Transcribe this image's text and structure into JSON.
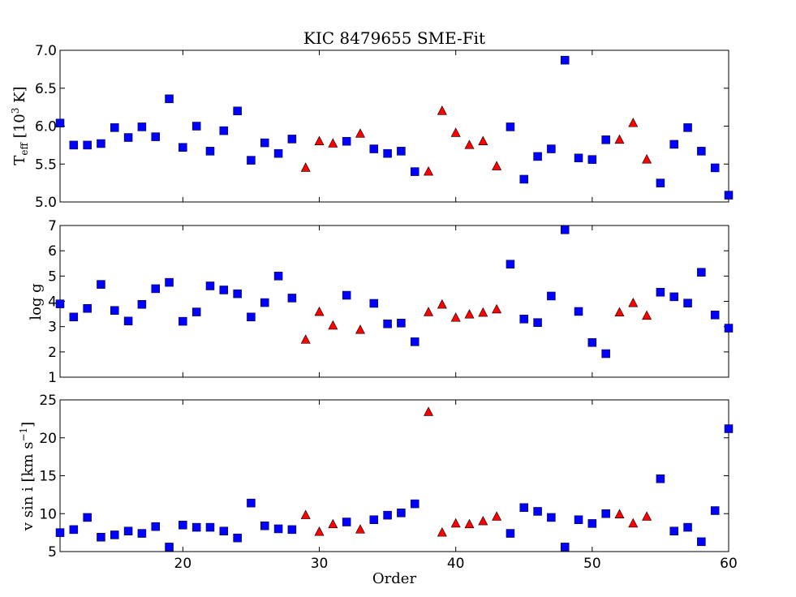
{
  "chart_data": [
    {
      "type": "scatter",
      "title": "KIC 8479655 SME-Fit",
      "ylabel": "T_eff [10^3 K]",
      "ylabel_main": "T",
      "ylabel_sub": "eff",
      "ylabel_pre_sup": " [10",
      "ylabel_sup": "3",
      "ylabel_post_sup": " K]",
      "xlim": [
        11,
        60
      ],
      "ylim": [
        5.0,
        7.0
      ],
      "yticks": [
        5.0,
        5.5,
        6.0,
        6.5,
        7.0
      ],
      "ytick_labels": [
        "5.0",
        "5.5",
        "6.0",
        "6.5",
        "7.0"
      ],
      "grid": false,
      "series": [
        {
          "marker": "square",
          "color": "#0000ff",
          "points": [
            [
              11,
              6.04
            ],
            [
              12,
              5.75
            ],
            [
              13,
              5.75
            ],
            [
              14,
              5.77
            ],
            [
              15,
              5.98
            ],
            [
              16,
              5.85
            ],
            [
              17,
              5.99
            ],
            [
              18,
              5.86
            ],
            [
              19,
              6.36
            ],
            [
              20,
              5.72
            ],
            [
              21,
              6.0
            ],
            [
              22,
              5.67
            ],
            [
              23,
              5.94
            ],
            [
              24,
              6.2
            ],
            [
              25,
              5.55
            ],
            [
              26,
              5.78
            ],
            [
              27,
              5.64
            ],
            [
              28,
              5.83
            ],
            [
              32,
              5.8
            ],
            [
              34,
              5.7
            ],
            [
              35,
              5.64
            ],
            [
              36,
              5.67
            ],
            [
              37,
              5.4
            ],
            [
              44,
              5.99
            ],
            [
              45,
              5.3
            ],
            [
              46,
              5.6
            ],
            [
              47,
              5.7
            ],
            [
              48,
              6.87
            ],
            [
              49,
              5.58
            ],
            [
              50,
              5.56
            ],
            [
              51,
              5.82
            ],
            [
              55,
              5.25
            ],
            [
              56,
              5.76
            ],
            [
              57,
              5.98
            ],
            [
              58,
              5.67
            ],
            [
              59,
              5.45
            ],
            [
              60,
              5.09
            ]
          ]
        },
        {
          "marker": "triangle",
          "color": "#ff0000",
          "points": [
            [
              29,
              5.45
            ],
            [
              30,
              5.8
            ],
            [
              31,
              5.77
            ],
            [
              33,
              5.9
            ],
            [
              38,
              5.4
            ],
            [
              39,
              6.2
            ],
            [
              40,
              5.91
            ],
            [
              41,
              5.75
            ],
            [
              42,
              5.8
            ],
            [
              43,
              5.47
            ],
            [
              52,
              5.82
            ],
            [
              53,
              6.04
            ],
            [
              54,
              5.56
            ]
          ]
        }
      ]
    },
    {
      "type": "scatter",
      "ylabel": "log g",
      "xlim": [
        11,
        60
      ],
      "ylim": [
        1,
        7
      ],
      "yticks": [
        1,
        2,
        3,
        4,
        5,
        6,
        7
      ],
      "ytick_labels": [
        "1",
        "2",
        "3",
        "4",
        "5",
        "6",
        "7"
      ],
      "grid": false,
      "series": [
        {
          "marker": "square",
          "color": "#0000ff",
          "points": [
            [
              11,
              3.9
            ],
            [
              12,
              3.38
            ],
            [
              13,
              3.72
            ],
            [
              14,
              4.67
            ],
            [
              15,
              3.64
            ],
            [
              16,
              3.22
            ],
            [
              17,
              3.88
            ],
            [
              18,
              4.5
            ],
            [
              19,
              4.75
            ],
            [
              20,
              3.21
            ],
            [
              21,
              3.58
            ],
            [
              22,
              4.61
            ],
            [
              23,
              4.45
            ],
            [
              24,
              4.3
            ],
            [
              25,
              3.38
            ],
            [
              26,
              3.95
            ],
            [
              27,
              5.0
            ],
            [
              28,
              4.13
            ],
            [
              32,
              4.24
            ],
            [
              34,
              3.92
            ],
            [
              35,
              3.11
            ],
            [
              36,
              3.14
            ],
            [
              37,
              2.4
            ],
            [
              44,
              5.47
            ],
            [
              45,
              3.3
            ],
            [
              46,
              3.16
            ],
            [
              47,
              4.21
            ],
            [
              48,
              6.83
            ],
            [
              49,
              3.6
            ],
            [
              50,
              2.37
            ],
            [
              51,
              1.93
            ],
            [
              55,
              4.36
            ],
            [
              56,
              4.18
            ],
            [
              57,
              3.93
            ],
            [
              58,
              5.15
            ],
            [
              59,
              3.46
            ],
            [
              60,
              2.94
            ]
          ]
        },
        {
          "marker": "triangle",
          "color": "#ff0000",
          "points": [
            [
              29,
              2.48
            ],
            [
              30,
              3.58
            ],
            [
              31,
              3.04
            ],
            [
              33,
              2.87
            ],
            [
              38,
              3.57
            ],
            [
              39,
              3.87
            ],
            [
              40,
              3.35
            ],
            [
              41,
              3.48
            ],
            [
              42,
              3.55
            ],
            [
              43,
              3.68
            ],
            [
              52,
              3.56
            ],
            [
              53,
              3.93
            ],
            [
              54,
              3.43
            ]
          ]
        }
      ]
    },
    {
      "type": "scatter",
      "xlabel": "Order",
      "ylabel": "v sin i [km s^-1]",
      "ylabel_pre_sup": "v sin i [km s",
      "ylabel_sup": "−1",
      "ylabel_post_sup": "]",
      "xlim": [
        11,
        60
      ],
      "ylim": [
        5,
        25
      ],
      "yticks": [
        5,
        10,
        15,
        20,
        25
      ],
      "ytick_labels": [
        "5",
        "10",
        "15",
        "20",
        "25"
      ],
      "xticks": [
        20,
        30,
        40,
        50,
        60
      ],
      "xtick_labels": [
        "20",
        "30",
        "40",
        "50",
        "60"
      ],
      "grid": false,
      "series": [
        {
          "marker": "square",
          "color": "#0000ff",
          "points": [
            [
              11,
              7.5
            ],
            [
              12,
              7.9
            ],
            [
              13,
              9.5
            ],
            [
              14,
              6.9
            ],
            [
              15,
              7.2
            ],
            [
              16,
              7.7
            ],
            [
              17,
              7.4
            ],
            [
              18,
              8.3
            ],
            [
              19,
              5.6
            ],
            [
              20,
              8.5
            ],
            [
              21,
              8.2
            ],
            [
              22,
              8.2
            ],
            [
              23,
              7.7
            ],
            [
              24,
              6.8
            ],
            [
              25,
              11.4
            ],
            [
              26,
              8.4
            ],
            [
              27,
              8.0
            ],
            [
              28,
              7.9
            ],
            [
              32,
              8.9
            ],
            [
              34,
              9.2
            ],
            [
              35,
              9.8
            ],
            [
              36,
              10.1
            ],
            [
              37,
              11.3
            ],
            [
              44,
              7.4
            ],
            [
              45,
              10.8
            ],
            [
              46,
              10.3
            ],
            [
              47,
              9.5
            ],
            [
              48,
              5.6
            ],
            [
              49,
              9.2
            ],
            [
              50,
              8.7
            ],
            [
              51,
              10.0
            ],
            [
              55,
              14.6
            ],
            [
              56,
              7.7
            ],
            [
              57,
              8.2
            ],
            [
              58,
              6.3
            ],
            [
              59,
              10.4
            ],
            [
              60,
              21.2
            ]
          ]
        },
        {
          "marker": "triangle",
          "color": "#ff0000",
          "points": [
            [
              29,
              9.8
            ],
            [
              30,
              7.6
            ],
            [
              31,
              8.6
            ],
            [
              33,
              7.9
            ],
            [
              38,
              23.4
            ],
            [
              39,
              7.5
            ],
            [
              40,
              8.7
            ],
            [
              41,
              8.6
            ],
            [
              42,
              9.0
            ],
            [
              43,
              9.6
            ],
            [
              52,
              9.9
            ],
            [
              53,
              8.7
            ],
            [
              54,
              9.6
            ]
          ]
        }
      ]
    }
  ]
}
